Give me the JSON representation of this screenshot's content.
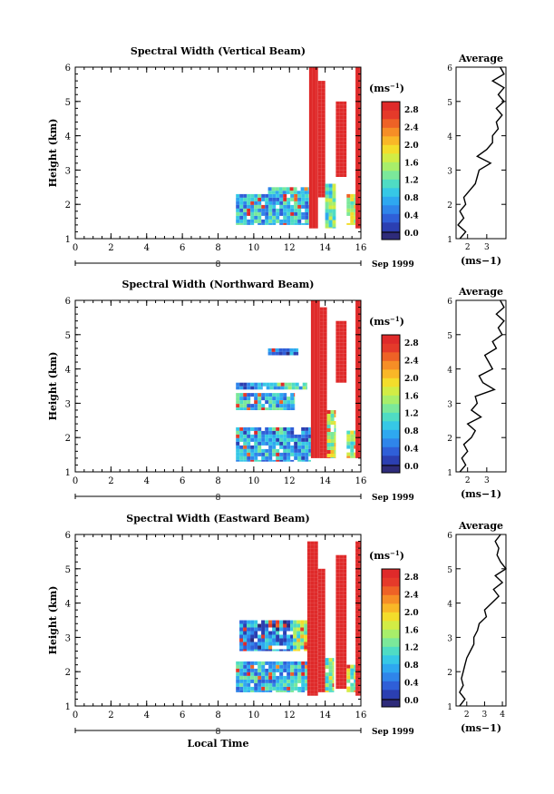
{
  "figure": {
    "xlabel": "Local Time",
    "date_label": "Sep 1999",
    "date_tick": "8",
    "cbar_unit": "(ms",
    "cbar_exp": "−1",
    "avg_title": "Average"
  },
  "chart_data": [
    {
      "type": "heatmap",
      "title": "Spectral Width (Vertical Beam)",
      "xlabel": "",
      "ylabel": "Height (km)",
      "xlim": [
        0,
        16
      ],
      "ylim": [
        1,
        6
      ],
      "xticks": [
        "0",
        "2",
        "4",
        "6",
        "8",
        "10",
        "12",
        "14",
        "16"
      ],
      "yticks": [
        "1",
        "2",
        "3",
        "4",
        "5",
        "6"
      ],
      "colorbar": {
        "label": "(ms−1)",
        "ticks": [
          "0.0",
          "0.4",
          "0.8",
          "1.2",
          "1.6",
          "2.0",
          "2.4",
          "2.8"
        ],
        "range": [
          0,
          2.8
        ]
      },
      "regions": [
        {
          "x": [
            9.0,
            13.1
          ],
          "y": [
            1.4,
            2.3
          ],
          "v": 0.9
        },
        {
          "x": [
            10.8,
            13.1
          ],
          "y": [
            2.3,
            2.5
          ],
          "v": 1.0
        },
        {
          "x": [
            13.1,
            13.6
          ],
          "y": [
            1.3,
            6.0
          ],
          "v": 2.9
        },
        {
          "x": [
            13.6,
            14.0
          ],
          "y": [
            2.2,
            5.6
          ],
          "v": 2.9
        },
        {
          "x": [
            14.0,
            14.6
          ],
          "y": [
            1.3,
            2.6
          ],
          "v": 1.3
        },
        {
          "x": [
            14.6,
            15.2
          ],
          "y": [
            2.8,
            5.0
          ],
          "v": 2.9
        },
        {
          "x": [
            15.2,
            15.7
          ],
          "y": [
            1.4,
            2.3
          ],
          "v": 1.5
        },
        {
          "x": [
            15.7,
            16.0
          ],
          "y": [
            1.3,
            6.0
          ],
          "v": 2.9
        }
      ],
      "average": {
        "title": "Average",
        "xlabel": "(ms−1)",
        "xticks": [
          "2",
          "3"
        ],
        "xlim": [
          1.4,
          4.0
        ],
        "y": [
          1.0,
          1.2,
          1.4,
          1.6,
          1.8,
          2.0,
          2.2,
          2.4,
          2.6,
          2.8,
          3.0,
          3.2,
          3.4,
          3.6,
          3.8,
          4.0,
          4.2,
          4.4,
          4.6,
          4.8,
          5.0,
          5.2,
          5.4,
          5.6,
          5.8,
          6.0
        ],
        "x": [
          1.6,
          1.9,
          1.5,
          1.8,
          1.6,
          1.9,
          1.8,
          2.1,
          2.4,
          2.5,
          2.6,
          3.2,
          2.5,
          3.0,
          3.3,
          3.3,
          3.6,
          3.5,
          3.8,
          3.5,
          3.9,
          3.6,
          3.9,
          3.3,
          3.9,
          3.7
        ]
      }
    },
    {
      "type": "heatmap",
      "title": "Spectral Width (Northward Beam)",
      "xlabel": "",
      "ylabel": "Height (km)",
      "xlim": [
        0,
        16
      ],
      "ylim": [
        1,
        6
      ],
      "xticks": [
        "0",
        "2",
        "4",
        "6",
        "8",
        "10",
        "12",
        "14",
        "16"
      ],
      "yticks": [
        "1",
        "2",
        "3",
        "4",
        "5",
        "6"
      ],
      "colorbar": {
        "label": "(ms−1)",
        "ticks": [
          "0.0",
          "0.4",
          "0.8",
          "1.2",
          "1.6",
          "2.0",
          "2.4",
          "2.8"
        ],
        "range": [
          0,
          2.8
        ]
      },
      "regions": [
        {
          "x": [
            9.0,
            13.2
          ],
          "y": [
            1.3,
            2.3
          ],
          "v": 0.8
        },
        {
          "x": [
            9.0,
            12.3
          ],
          "y": [
            2.8,
            3.3
          ],
          "v": 0.9
        },
        {
          "x": [
            9.0,
            10.5
          ],
          "y": [
            3.4,
            3.6
          ],
          "v": 0.7
        },
        {
          "x": [
            10.5,
            13.0
          ],
          "y": [
            3.4,
            3.6
          ],
          "v": 1.1
        },
        {
          "x": [
            10.8,
            12.5
          ],
          "y": [
            4.4,
            4.6
          ],
          "v": 0.6
        },
        {
          "x": [
            13.2,
            13.7
          ],
          "y": [
            1.4,
            6.0
          ],
          "v": 2.9
        },
        {
          "x": [
            13.7,
            14.1
          ],
          "y": [
            1.4,
            5.8
          ],
          "v": 2.9
        },
        {
          "x": [
            14.1,
            14.6
          ],
          "y": [
            1.4,
            2.8
          ],
          "v": 1.6
        },
        {
          "x": [
            14.6,
            15.2
          ],
          "y": [
            3.6,
            5.4
          ],
          "v": 2.9
        },
        {
          "x": [
            15.2,
            15.7
          ],
          "y": [
            1.4,
            2.2
          ],
          "v": 1.4
        },
        {
          "x": [
            15.7,
            16.0
          ],
          "y": [
            1.4,
            6.0
          ],
          "v": 2.9
        }
      ],
      "average": {
        "title": "Average",
        "xlabel": "(ms−1)",
        "xticks": [
          "2",
          "3"
        ],
        "xlim": [
          1.4,
          4.0
        ],
        "y": [
          1.0,
          1.2,
          1.4,
          1.6,
          1.8,
          2.0,
          2.2,
          2.4,
          2.6,
          2.8,
          3.0,
          3.2,
          3.4,
          3.6,
          3.8,
          4.0,
          4.2,
          4.4,
          4.6,
          4.8,
          5.0,
          5.2,
          5.4,
          5.6,
          5.8,
          6.0
        ],
        "x": [
          1.6,
          1.9,
          1.7,
          2.0,
          1.8,
          2.2,
          2.4,
          2.0,
          2.7,
          2.2,
          2.5,
          2.4,
          3.4,
          2.8,
          2.6,
          3.3,
          3.1,
          2.9,
          3.5,
          3.3,
          3.8,
          3.6,
          3.9,
          3.5,
          3.9,
          3.7
        ]
      }
    },
    {
      "type": "heatmap",
      "title": "Spectral Width (Eastward Beam)",
      "xlabel": "Local Time",
      "ylabel": "Height (km)",
      "xlim": [
        0,
        16
      ],
      "ylim": [
        1,
        6
      ],
      "xticks": [
        "0",
        "2",
        "4",
        "6",
        "8",
        "10",
        "12",
        "14",
        "16"
      ],
      "yticks": [
        "1",
        "2",
        "3",
        "4",
        "5",
        "6"
      ],
      "colorbar": {
        "label": "(ms−1)",
        "ticks": [
          "0.0",
          "0.4",
          "0.8",
          "1.2",
          "1.6",
          "2.0",
          "2.4",
          "2.8"
        ],
        "range": [
          0,
          2.8
        ]
      },
      "regions": [
        {
          "x": [
            9.0,
            13.0
          ],
          "y": [
            1.4,
            2.3
          ],
          "v": 0.9
        },
        {
          "x": [
            9.2,
            12.2
          ],
          "y": [
            2.6,
            3.5
          ],
          "v": 0.6
        },
        {
          "x": [
            12.2,
            13.0
          ],
          "y": [
            2.6,
            3.5
          ],
          "v": 1.5
        },
        {
          "x": [
            13.0,
            13.6
          ],
          "y": [
            1.3,
            5.8
          ],
          "v": 2.9
        },
        {
          "x": [
            13.6,
            14.0
          ],
          "y": [
            1.4,
            5.0
          ],
          "v": 2.9
        },
        {
          "x": [
            14.0,
            14.5
          ],
          "y": [
            1.4,
            2.4
          ],
          "v": 1.3
        },
        {
          "x": [
            14.6,
            15.2
          ],
          "y": [
            1.5,
            5.4
          ],
          "v": 2.9
        },
        {
          "x": [
            15.2,
            15.7
          ],
          "y": [
            1.4,
            2.2
          ],
          "v": 1.4
        },
        {
          "x": [
            15.7,
            16.0
          ],
          "y": [
            1.3,
            5.8
          ],
          "v": 2.9
        }
      ],
      "average": {
        "title": "Average",
        "xlabel": "(ms−1)",
        "xticks": [
          "2",
          "3",
          "4"
        ],
        "xlim": [
          1.4,
          4.2
        ],
        "y": [
          1.0,
          1.2,
          1.4,
          1.6,
          1.8,
          2.0,
          2.2,
          2.4,
          2.6,
          2.8,
          3.0,
          3.2,
          3.4,
          3.6,
          3.8,
          4.0,
          4.2,
          4.4,
          4.6,
          4.8,
          5.0,
          5.2,
          5.4,
          5.6,
          5.8,
          6.0
        ],
        "x": [
          1.6,
          1.9,
          1.6,
          1.8,
          1.7,
          1.8,
          1.9,
          2.0,
          2.2,
          2.4,
          2.4,
          2.6,
          2.7,
          3.1,
          3.0,
          3.4,
          3.8,
          3.5,
          4.0,
          3.6,
          4.2,
          3.9,
          3.7,
          3.8,
          3.6,
          3.9
        ]
      }
    }
  ]
}
